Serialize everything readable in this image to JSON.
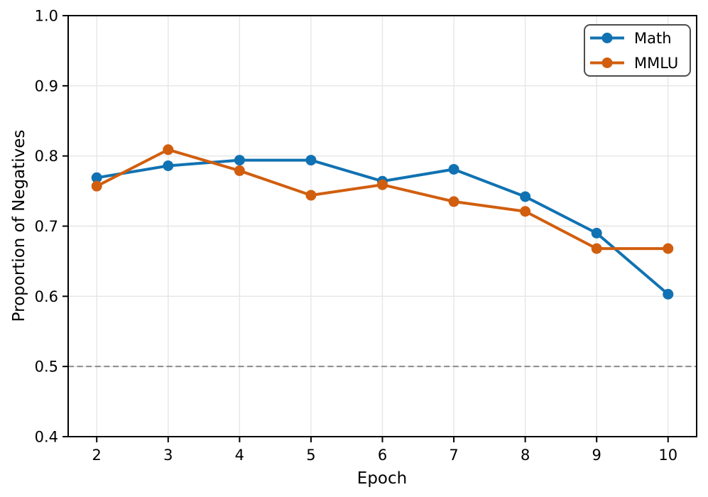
{
  "chart_data": {
    "type": "line",
    "title": "",
    "xlabel": "Epoch",
    "ylabel": "Proportion of Negatives",
    "x": [
      2,
      3,
      4,
      5,
      6,
      7,
      8,
      9,
      10
    ],
    "series": [
      {
        "name": "Math",
        "color": "#1072b2",
        "values": [
          0.769,
          0.786,
          0.794,
          0.794,
          0.764,
          0.781,
          0.742,
          0.69,
          0.603
        ]
      },
      {
        "name": "MMLU",
        "color": "#d15e0e",
        "values": [
          0.757,
          0.809,
          0.779,
          0.744,
          0.759,
          0.735,
          0.721,
          0.668,
          0.668
        ]
      }
    ],
    "xticks": [
      2,
      3,
      4,
      5,
      6,
      7,
      8,
      9,
      10
    ],
    "yticks": [
      0.4,
      0.5,
      0.6,
      0.7,
      0.8,
      0.9,
      1.0
    ],
    "xlim": [
      1.6,
      10.4
    ],
    "ylim": [
      0.4,
      1.0
    ],
    "grid": true,
    "legend_position": "upper right",
    "reference_line": {
      "y": 0.5,
      "style": "dashed",
      "color": "#8a8a8a"
    }
  }
}
